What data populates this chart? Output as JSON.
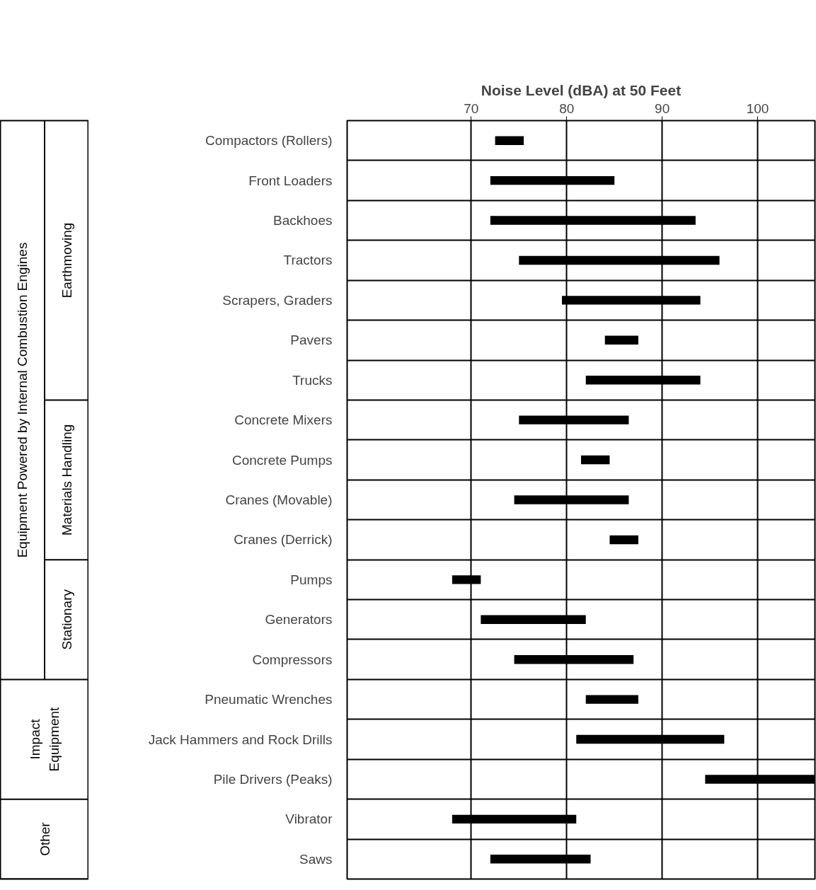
{
  "chart_data": {
    "type": "bar",
    "orientation": "horizontal",
    "title": "Noise Level (dBA) at 50 Feet",
    "categories": [
      "Compactors (Rollers)",
      "Front Loaders",
      "Backhoes",
      "Tractors",
      "Scrapers, Graders",
      "Pavers",
      "Trucks",
      "Concrete Mixers",
      "Concrete Pumps",
      "Cranes (Movable)",
      "Cranes (Derrick)",
      "Pumps",
      "Generators",
      "Compressors",
      "Pneumatic Wrenches",
      "Jack Hammers and Rock Drills",
      "Pile Drivers (Peaks)",
      "Vibrator",
      "Saws"
    ],
    "base": [
      72.5,
      72,
      72,
      75,
      79.5,
      84,
      82,
      75,
      81.5,
      74.5,
      84.5,
      68,
      71,
      74.5,
      82,
      81,
      94.5,
      68,
      72
    ],
    "values": [
      3,
      13,
      21.5,
      21,
      14.5,
      3.5,
      12,
      11.5,
      3,
      12,
      3,
      3,
      11,
      12.5,
      5.5,
      15.5,
      11.5,
      13,
      10.5
    ],
    "color": "#000000",
    "xlim": [
      57,
      106
    ],
    "xticks": [
      70,
      80,
      90,
      100
    ],
    "grid": true,
    "annotations": [
      "Equipment Powered by Internal Combustion Engines",
      "Earthmoving",
      "Materials Handling",
      "Stationary",
      "Impact Equipment",
      "Other"
    ]
  }
}
